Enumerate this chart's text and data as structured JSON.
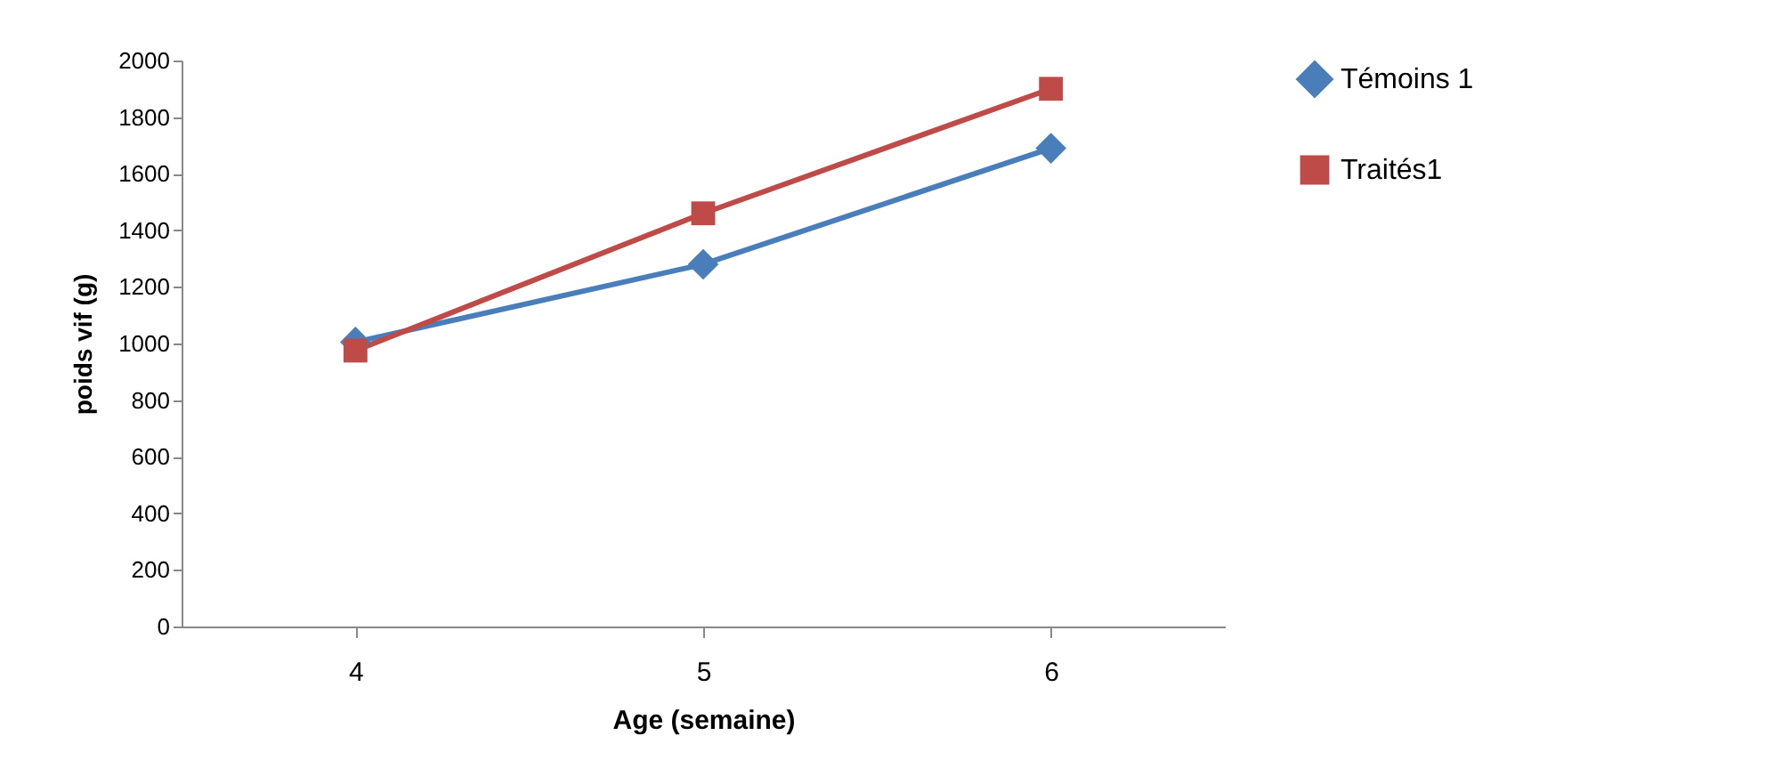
{
  "chart_data": {
    "type": "line",
    "xlabel": "Age (semaine)",
    "ylabel": "poids vif (g)",
    "categories": [
      "4",
      "5",
      "6"
    ],
    "series": [
      {
        "name": "Témoins 1",
        "color": "#4a7ebb",
        "marker": "diamond",
        "values": [
          1005,
          1280,
          1690
        ]
      },
      {
        "name": "Traités1",
        "color": "#be4b48",
        "marker": "square",
        "values": [
          975,
          1460,
          1900
        ]
      }
    ],
    "ylim": [
      0,
      2000
    ],
    "yticks": [
      0,
      200,
      400,
      600,
      800,
      1000,
      1200,
      1400,
      1600,
      1800,
      2000
    ],
    "grid": false,
    "legend": "right"
  }
}
